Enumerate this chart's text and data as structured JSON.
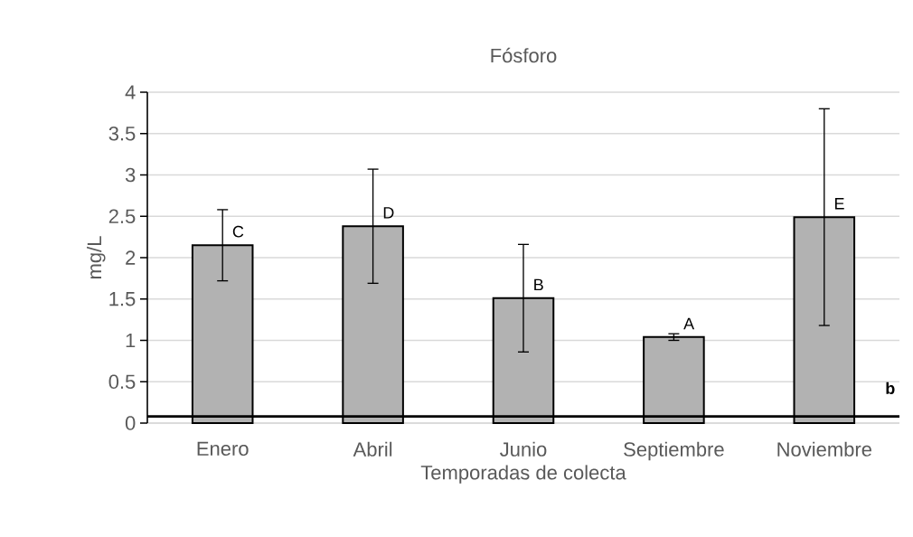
{
  "chart_data": {
    "type": "bar",
    "title": "Fósforo",
    "xlabel": "Temporadas de colecta",
    "ylabel": "mg/L",
    "categories": [
      "Enero",
      "Abril",
      "Junio",
      "Septiembre",
      "Noviembre"
    ],
    "values": [
      2.15,
      2.38,
      1.51,
      1.04,
      2.49
    ],
    "errors": [
      0.43,
      0.69,
      0.65,
      0.04,
      1.31
    ],
    "color": "#000000",
    "ylim": [
      0,
      4
    ],
    "yticks": [
      0,
      0.5,
      1,
      1.5,
      2,
      2.5,
      3,
      3.5,
      4
    ],
    "grid": "y",
    "annotations": [
      "C",
      "D",
      "B",
      "A",
      "E"
    ],
    "ref_lines": [
      {
        "axis": "y",
        "value": 0.08,
        "label": "b",
        "color": "#000000"
      }
    ]
  }
}
